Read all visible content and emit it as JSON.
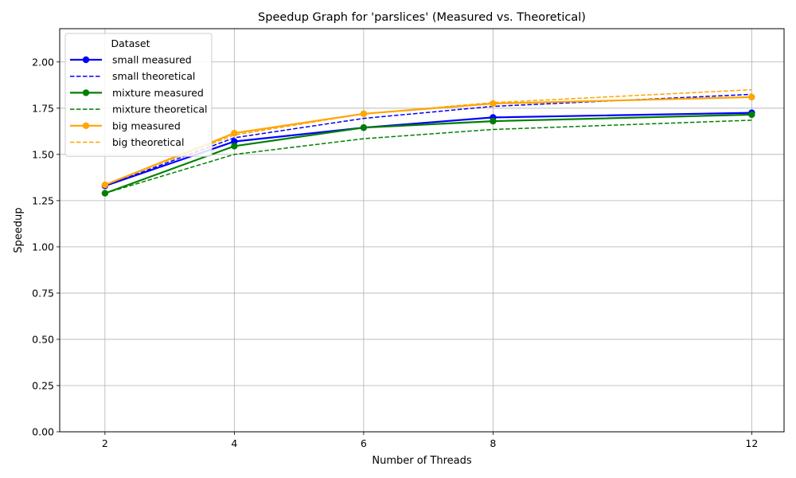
{
  "chart_data": {
    "type": "line",
    "title": "Speedup Graph for 'parslices' (Measured vs. Theoretical)",
    "xlabel": "Number of Threads",
    "ylabel": "Speedup",
    "x": [
      2,
      4,
      6,
      8,
      12
    ],
    "xticks": [
      "2",
      "4",
      "6",
      "8",
      "12"
    ],
    "xlim": [
      1.3,
      12.5
    ],
    "yticks": [
      "0.00",
      "0.25",
      "0.50",
      "0.75",
      "1.00",
      "1.25",
      "1.50",
      "1.75",
      "2.00"
    ],
    "ylim": [
      0,
      2.18
    ],
    "grid": true,
    "legend": {
      "title": "Dataset",
      "placement": "top-left"
    },
    "series": [
      {
        "name": "small measured",
        "values": [
          1.33,
          1.57,
          1.645,
          1.7,
          1.725
        ],
        "color": "#0000ff",
        "style": "solid",
        "markers": true
      },
      {
        "name": "small theoretical",
        "values": [
          1.33,
          1.59,
          1.695,
          1.76,
          1.825
        ],
        "color": "#0000ff",
        "style": "dashed",
        "markers": false
      },
      {
        "name": "mixture measured",
        "values": [
          1.29,
          1.545,
          1.645,
          1.68,
          1.715
        ],
        "color": "#008000",
        "style": "solid",
        "markers": true
      },
      {
        "name": "mixture theoretical",
        "values": [
          1.29,
          1.5,
          1.585,
          1.635,
          1.685
        ],
        "color": "#008000",
        "style": "dashed",
        "markers": false
      },
      {
        "name": "big measured",
        "values": [
          1.335,
          1.615,
          1.72,
          1.775,
          1.81
        ],
        "color": "#ffa500",
        "style": "solid",
        "markers": true
      },
      {
        "name": "big theoretical",
        "values": [
          1.335,
          1.605,
          1.72,
          1.78,
          1.85
        ],
        "color": "#ffa500",
        "style": "dashed",
        "markers": false
      }
    ]
  }
}
